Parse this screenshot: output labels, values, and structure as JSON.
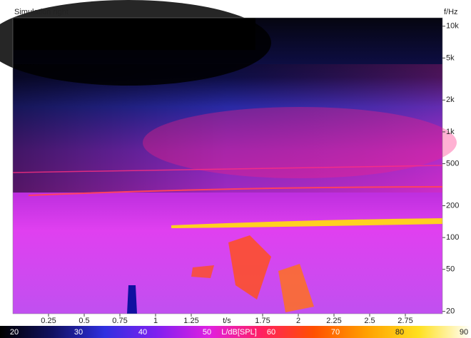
{
  "chart_data": {
    "type": "spectrogram",
    "title": "Simulation right",
    "xlabel": "t/s",
    "ylabel": "f/Hz",
    "xlim": [
      0,
      3.01
    ],
    "xticks": [
      0.25,
      0.5,
      0.75,
      1,
      1.25,
      1.75,
      2,
      2.25,
      2.5,
      2.75
    ],
    "ylim": [
      19,
      12000
    ],
    "log_scale_y": true,
    "yticks": [
      {
        "value": 10000,
        "label": "10k"
      },
      {
        "value": 5000,
        "label": "5k"
      },
      {
        "value": 2000,
        "label": "2k"
      },
      {
        "value": 1000,
        "label": "1k"
      },
      500,
      200,
      100,
      50,
      20
    ],
    "colorbar": {
      "label": "L/dB[SPL]",
      "lim": [
        20,
        90
      ],
      "ticks": [
        20,
        30,
        40,
        50,
        60,
        70,
        80,
        90
      ],
      "colors": [
        "#000000",
        "#101060",
        "#3030e0",
        "#8020f0",
        "#e020e0",
        "#ff2060",
        "#ff5000",
        "#ffa000",
        "#ffe020",
        "#ffffff"
      ]
    }
  }
}
